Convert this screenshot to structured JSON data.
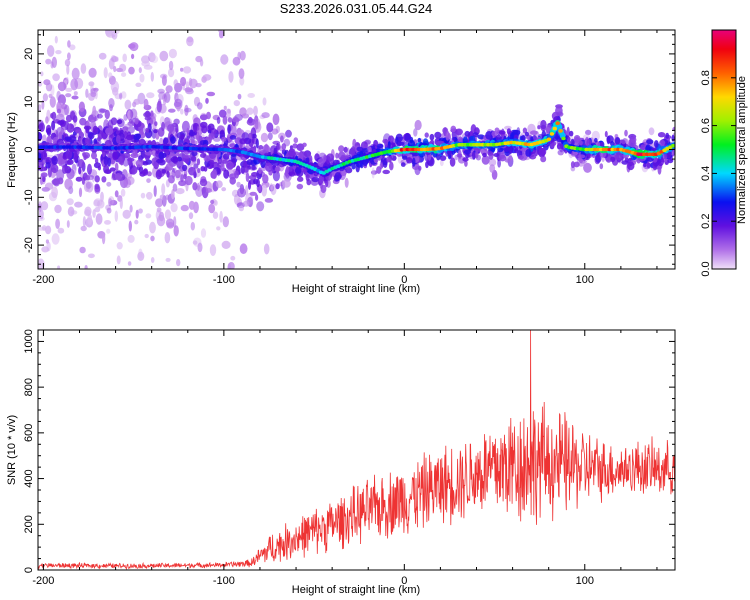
{
  "title": "S233.2026.031.05.44.G24",
  "chart_data": [
    {
      "type": "heatmap",
      "title": "S233.2026.031.05.44.G24",
      "xlabel": "Height of straight line (km)",
      "ylabel": "Frequency (Hz)",
      "xlim": [
        -203,
        150
      ],
      "ylim": [
        -25,
        25
      ],
      "xticks": [
        -200,
        -100,
        0,
        100
      ],
      "xtick_labels": [
        "-200",
        "-100",
        "0",
        "100"
      ],
      "yticks": [
        -20,
        -10,
        0,
        10,
        20
      ],
      "ytick_labels": [
        "-20",
        "-10",
        "0",
        "10",
        "20"
      ],
      "colorbar": {
        "label": "Normalized spectral amplitude",
        "range": [
          0,
          1
        ],
        "ticks": [
          0.0,
          0.2,
          0.4,
          0.6,
          0.8
        ],
        "tick_labels": [
          "0.0",
          "0.2",
          "0.4",
          "0.6",
          "0.8"
        ],
        "colormap": "rainbow"
      },
      "ridge": {
        "description": "dominant frequency track vs height",
        "x": [
          -203,
          -180,
          -160,
          -140,
          -120,
          -100,
          -90,
          -80,
          -70,
          -60,
          -50,
          -45,
          -40,
          -30,
          -20,
          -10,
          0,
          10,
          20,
          30,
          40,
          50,
          60,
          70,
          80,
          85,
          90,
          100,
          110,
          120,
          130,
          140,
          150
        ],
        "y": [
          0.5,
          0.5,
          0.3,
          0.6,
          0.2,
          0.0,
          -0.5,
          -1.5,
          -2.0,
          -2.5,
          -4.0,
          -5.0,
          -4.0,
          -2.5,
          -1.5,
          -0.5,
          0.0,
          0.0,
          0.2,
          1.0,
          1.0,
          1.0,
          1.5,
          1.0,
          2.0,
          5.5,
          0.5,
          0.0,
          0.0,
          0.0,
          -1.0,
          -1.0,
          1.0
        ],
        "amplitude": [
          0.3,
          0.3,
          0.3,
          0.3,
          0.3,
          0.3,
          0.35,
          0.4,
          0.45,
          0.45,
          0.4,
          0.4,
          0.45,
          0.5,
          0.5,
          0.55,
          0.9,
          0.85,
          0.8,
          0.6,
          0.65,
          0.6,
          0.7,
          0.75,
          0.7,
          0.8,
          0.55,
          0.6,
          0.85,
          0.75,
          0.9,
          0.85,
          0.6
        ]
      }
    },
    {
      "type": "line",
      "xlabel": "Height of straight line (km)",
      "ylabel": "SNR (10 * v/v)",
      "xlim": [
        -203,
        150
      ],
      "ylim": [
        0,
        1050
      ],
      "xticks": [
        -200,
        -100,
        0,
        100
      ],
      "xtick_labels": [
        "-200",
        "-100",
        "0",
        "100"
      ],
      "yticks": [
        0,
        200,
        400,
        600,
        800,
        1000
      ],
      "ytick_labels": [
        "0",
        "200",
        "400",
        "600",
        "800",
        "1000"
      ],
      "color": "#ee3333",
      "envelope": {
        "description": "approximate mean and spread of the noisy SNR trace",
        "x": [
          -203,
          -150,
          -100,
          -85,
          -75,
          -60,
          -40,
          -20,
          0,
          20,
          40,
          50,
          60,
          70,
          80,
          90,
          100,
          110,
          120,
          130,
          140,
          150
        ],
        "mean": [
          20,
          18,
          22,
          30,
          90,
          140,
          200,
          260,
          310,
          370,
          420,
          440,
          460,
          470,
          470,
          460,
          450,
          440,
          440,
          450,
          440,
          450
        ],
        "spread": [
          10,
          10,
          10,
          15,
          60,
          80,
          100,
          120,
          140,
          150,
          170,
          200,
          230,
          250,
          220,
          200,
          150,
          120,
          100,
          110,
          110,
          100
        ]
      },
      "peak": {
        "x": 70,
        "y": 1050
      }
    }
  ]
}
